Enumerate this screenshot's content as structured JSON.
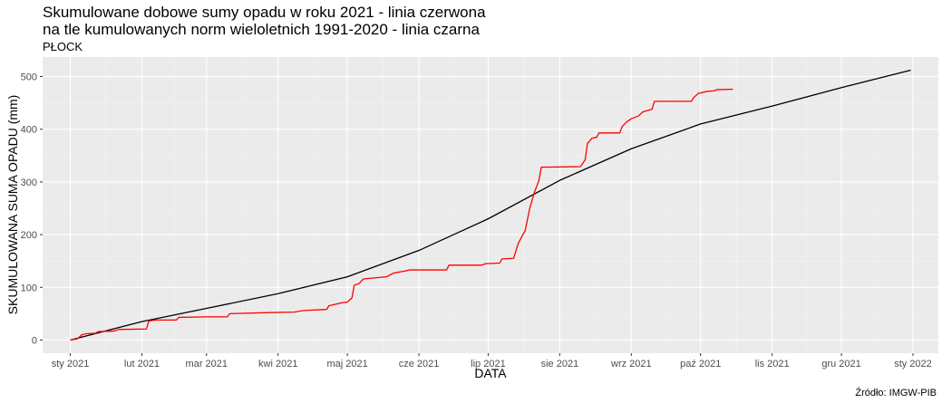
{
  "chart_data": {
    "type": "line",
    "title_lines": [
      "Skumulowane dobowe sumy opadu w roku 2021 - linia czerwona",
      "na tle kumulowanych norm wieloletnich 1991-2020 - linia czarna"
    ],
    "subtitle": "PŁOCK",
    "xlabel": "DATA",
    "ylabel": "SKUMULOWANA SUMA OPADU (mm)",
    "caption": "Źródło: IMGW-PIB",
    "x_axis_type": "date",
    "xlim": [
      "2020-12-20",
      "2022-01-12"
    ],
    "ylim": [
      -25,
      537
    ],
    "x_ticks": [
      {
        "date": "2021-01-01",
        "label": "sty 2021"
      },
      {
        "date": "2021-02-01",
        "label": "lut 2021"
      },
      {
        "date": "2021-03-01",
        "label": "mar 2021"
      },
      {
        "date": "2021-04-01",
        "label": "kwi 2021"
      },
      {
        "date": "2021-05-01",
        "label": "maj 2021"
      },
      {
        "date": "2021-06-01",
        "label": "cze 2021"
      },
      {
        "date": "2021-07-01",
        "label": "lip 2021"
      },
      {
        "date": "2021-08-01",
        "label": "sie 2021"
      },
      {
        "date": "2021-09-01",
        "label": "wrz 2021"
      },
      {
        "date": "2021-10-01",
        "label": "paź 2021"
      },
      {
        "date": "2021-11-01",
        "label": "lis 2021"
      },
      {
        "date": "2021-12-01",
        "label": "gru 2021"
      },
      {
        "date": "2022-01-01",
        "label": "sty 2022"
      }
    ],
    "y_ticks": [
      0,
      100,
      200,
      300,
      400,
      500
    ],
    "grid": true,
    "background": "#ebebeb",
    "series": [
      {
        "color": "#000000",
        "points": [
          [
            "2021-01-01",
            0
          ],
          [
            "2021-02-01",
            35
          ],
          [
            "2021-03-01",
            60
          ],
          [
            "2021-04-01",
            88
          ],
          [
            "2021-05-01",
            120
          ],
          [
            "2021-06-01",
            170
          ],
          [
            "2021-07-01",
            230
          ],
          [
            "2021-08-01",
            303
          ],
          [
            "2021-09-01",
            363
          ],
          [
            "2021-10-01",
            410
          ],
          [
            "2021-11-01",
            444
          ],
          [
            "2021-12-01",
            479
          ],
          [
            "2021-12-31",
            512
          ]
        ]
      },
      {
        "color": "#ff0000",
        "points": [
          [
            "2021-01-01",
            0
          ],
          [
            "2021-01-04",
            2
          ],
          [
            "2021-01-06",
            10
          ],
          [
            "2021-01-08",
            12
          ],
          [
            "2021-01-12",
            13
          ],
          [
            "2021-01-13",
            16
          ],
          [
            "2021-01-20",
            17
          ],
          [
            "2021-01-22",
            20
          ],
          [
            "2021-02-03",
            21
          ],
          [
            "2021-02-04",
            36
          ],
          [
            "2021-02-07",
            38
          ],
          [
            "2021-02-16",
            38
          ],
          [
            "2021-02-17",
            43
          ],
          [
            "2021-03-01",
            44
          ],
          [
            "2021-03-10",
            44
          ],
          [
            "2021-03-11",
            50
          ],
          [
            "2021-03-28",
            52
          ],
          [
            "2021-04-08",
            53
          ],
          [
            "2021-04-12",
            56
          ],
          [
            "2021-04-22",
            58
          ],
          [
            "2021-04-23",
            65
          ],
          [
            "2021-04-26",
            68
          ],
          [
            "2021-04-29",
            71
          ],
          [
            "2021-05-01",
            72
          ],
          [
            "2021-05-03",
            80
          ],
          [
            "2021-05-04",
            104
          ],
          [
            "2021-05-06",
            107
          ],
          [
            "2021-05-08",
            116
          ],
          [
            "2021-05-18",
            120
          ],
          [
            "2021-05-21",
            127
          ],
          [
            "2021-05-26",
            131
          ],
          [
            "2021-05-28",
            133
          ],
          [
            "2021-06-13",
            133
          ],
          [
            "2021-06-14",
            142
          ],
          [
            "2021-06-28",
            142
          ],
          [
            "2021-06-30",
            145
          ],
          [
            "2021-07-06",
            146
          ],
          [
            "2021-07-07",
            154
          ],
          [
            "2021-07-12",
            155
          ],
          [
            "2021-07-14",
            183
          ],
          [
            "2021-07-16",
            200
          ],
          [
            "2021-07-17",
            207
          ],
          [
            "2021-07-19",
            250
          ],
          [
            "2021-07-21",
            280
          ],
          [
            "2021-07-23",
            303
          ],
          [
            "2021-07-24",
            328
          ],
          [
            "2021-08-10",
            329
          ],
          [
            "2021-08-12",
            342
          ],
          [
            "2021-08-13",
            373
          ],
          [
            "2021-08-15",
            383
          ],
          [
            "2021-08-17",
            385
          ],
          [
            "2021-08-18",
            393
          ],
          [
            "2021-08-27",
            393
          ],
          [
            "2021-08-28",
            405
          ],
          [
            "2021-08-30",
            414
          ],
          [
            "2021-09-01",
            420
          ],
          [
            "2021-09-04",
            425
          ],
          [
            "2021-09-06",
            433
          ],
          [
            "2021-09-10",
            438
          ],
          [
            "2021-09-11",
            453
          ],
          [
            "2021-09-27",
            453
          ],
          [
            "2021-09-28",
            460
          ],
          [
            "2021-09-30",
            468
          ],
          [
            "2021-10-04",
            472
          ],
          [
            "2021-10-07",
            473
          ],
          [
            "2021-10-08",
            475
          ],
          [
            "2021-10-15",
            476
          ]
        ]
      }
    ]
  }
}
